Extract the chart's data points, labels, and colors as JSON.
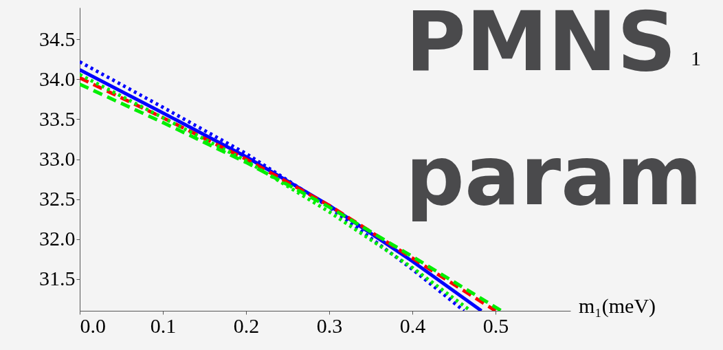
{
  "chart_data": {
    "type": "line",
    "xlabel": "m₁(meV)",
    "annotations": [
      "PMNS",
      "1",
      "param"
    ],
    "xlim": [
      0,
      0.59
    ],
    "ylim": [
      31.1,
      34.9
    ],
    "xticks": [
      {
        "value": 0,
        "label": "0.0"
      },
      0.1,
      0.2,
      0.3,
      0.4,
      0.5
    ],
    "yticks": [
      31.5,
      {
        "value": 32,
        "label": "32.0"
      },
      32.5,
      {
        "value": 33,
        "label": "33.0"
      },
      33.5,
      {
        "value": 34,
        "label": "34.0"
      },
      34.5
    ],
    "grid": false,
    "series": [
      {
        "color": "#0000ff",
        "line_style": "dotted",
        "x": [
          0,
          0.1,
          0.2,
          0.3,
          0.4,
          0.462
        ],
        "values": [
          34.22,
          33.65,
          33.07,
          32.4,
          31.62,
          31.1
        ]
      },
      {
        "color": "#0000ff",
        "line_style": "solid",
        "x": [
          0,
          0.1,
          0.2,
          0.3,
          0.4,
          0.483
        ],
        "values": [
          34.12,
          33.58,
          33.03,
          32.42,
          31.72,
          31.1
        ]
      },
      {
        "color": "#ff0000",
        "line_style": "dashed",
        "x": [
          0,
          0.1,
          0.2,
          0.3,
          0.4,
          0.5
        ],
        "values": [
          34.02,
          33.52,
          33.0,
          32.42,
          31.76,
          31.1
        ]
      },
      {
        "color": "#00ee00",
        "line_style": "dashed",
        "x": [
          0,
          0.1,
          0.2,
          0.3,
          0.4,
          0.507
        ],
        "values": [
          33.94,
          33.46,
          32.96,
          32.4,
          31.78,
          31.1
        ]
      },
      {
        "color": "#00ee00",
        "line_style": "dotted",
        "x": [
          0,
          0.1,
          0.2,
          0.3,
          0.4,
          0.47
        ],
        "values": [
          34.06,
          33.52,
          32.98,
          32.34,
          31.64,
          31.1
        ]
      }
    ]
  }
}
